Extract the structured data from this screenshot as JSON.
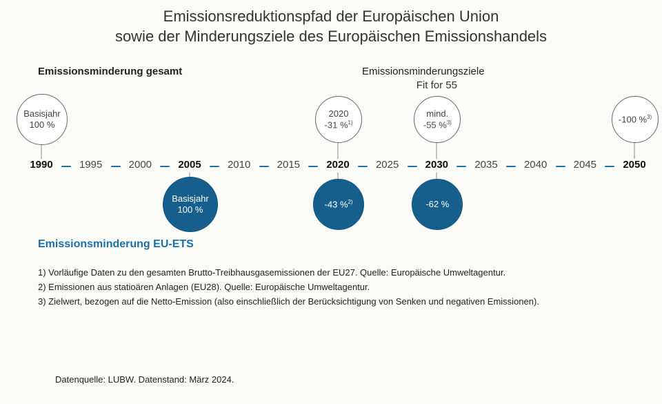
{
  "colors": {
    "blue": "#165f8c",
    "dash": "#1b6fa8",
    "text": "#333"
  },
  "title": {
    "l1": "Emissionsreduktionspfad der Europäischen Union",
    "l2": "sowie der Minderungsziele des Europäischen Emissionshandels"
  },
  "subLeft": "Emissionsminderung gesamt",
  "subRight": "Emissionsminderungsziele",
  "fit": "Fit for 55",
  "timeline": {
    "start": 1990,
    "end": 2050,
    "step": 5,
    "bold": [
      1990,
      2005,
      2020,
      2030,
      2050
    ]
  },
  "bubblesTop": [
    {
      "year": 1990,
      "l1": "Basisjahr",
      "l2": "100 %",
      "d": 72
    },
    {
      "year": 2020,
      "l1": "2020",
      "l2": "-31 %",
      "sup": "1)",
      "d": 66
    },
    {
      "year": 2030,
      "l1": "mind.",
      "l2": "-55 %",
      "sup": "3)",
      "d": 66
    },
    {
      "year": 2050,
      "l1": "",
      "l2": "-100 %",
      "sup": "3)",
      "d": 66
    }
  ],
  "bubblesBot": [
    {
      "year": 2005,
      "l1": "Basisjahr",
      "l2": "100 %",
      "d": 78
    },
    {
      "year": 2020,
      "l1": "",
      "l2": "-43 %",
      "sup": "2)",
      "d": 72
    },
    {
      "year": 2030,
      "l1": "",
      "l2": "-62 %",
      "d": 72
    }
  ],
  "subBlue": "Emissionsminderung EU-ETS",
  "notes": [
    "1) Vorläufige Daten zu den gesamten Brutto-Treibhausgasemissionen der EU27. Quelle: Europäische Umweltagentur.",
    "2) Emissionen aus statioären Anlagen (EU28). Quelle: Europäische Umweltagentur.",
    "3) Zielwert, bezogen auf die Netto-Emission (also einschließlich der Berücksichtigung von Senken und negativen Emissionen)."
  ],
  "source": "Datenquelle: LUBW. Datenstand: März 2024.",
  "layout": {
    "tlLeft": 60,
    "tlWidth": 860,
    "tlY": 230,
    "topBubbleCY": 172,
    "botBubbleCY": 295
  }
}
